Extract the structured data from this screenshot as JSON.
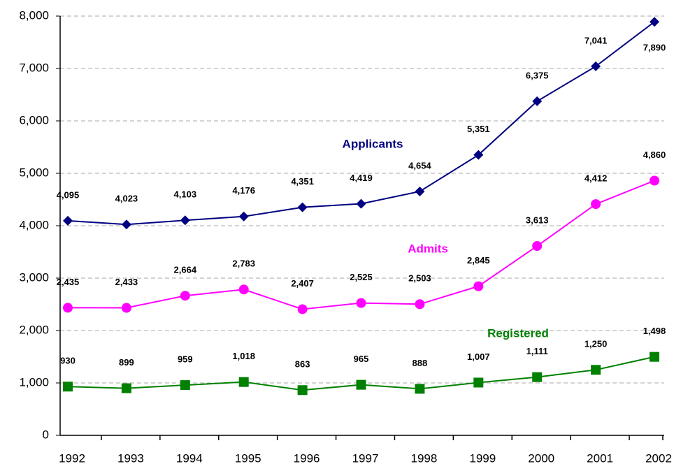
{
  "chart_data": {
    "type": "line",
    "categories": [
      "1992",
      "1993",
      "1994",
      "1995",
      "1996",
      "1997",
      "1998",
      "1999",
      "2000",
      "2001",
      "2002"
    ],
    "series": [
      {
        "name": "Applicants",
        "color": "#000080",
        "marker": "diamond",
        "values": [
          4095,
          4023,
          4103,
          4176,
          4351,
          4419,
          4654,
          5351,
          6375,
          7041,
          7890
        ],
        "value_labels": [
          "4,095",
          "4,023",
          "4,103",
          "4,176",
          "4,351",
          "4,419",
          "4,654",
          "5,351",
          "6,375",
          "7,041",
          "7,890"
        ]
      },
      {
        "name": "Admits",
        "color": "#ff00ff",
        "marker": "circle",
        "values": [
          2435,
          2433,
          2664,
          2783,
          2407,
          2525,
          2503,
          2845,
          3613,
          4412,
          4860
        ],
        "value_labels": [
          "2,435",
          "2,433",
          "2,664",
          "2,783",
          "2,407",
          "2,525",
          "2,503",
          "2,845",
          "3,613",
          "4,412",
          "4,860"
        ]
      },
      {
        "name": "Registered",
        "color": "#008000",
        "marker": "square",
        "values": [
          930,
          899,
          959,
          1018,
          863,
          965,
          888,
          1007,
          1111,
          1250,
          1498
        ],
        "value_labels": [
          "930",
          "899",
          "959",
          "1,018",
          "863",
          "965",
          "888",
          "1,007",
          "1,111",
          "1,250",
          "1,498"
        ]
      }
    ],
    "ylim": [
      0,
      8000
    ],
    "yticks": [
      0,
      {
        "value": 1000,
        "label": "1,000"
      },
      {
        "value": 2000,
        "label": "2,000"
      },
      {
        "value": 3000,
        "label": "3,000"
      },
      {
        "value": 4000,
        "label": "4,000"
      },
      {
        "value": 5000,
        "label": "5,000"
      },
      {
        "value": 6000,
        "label": "6,000"
      },
      {
        "value": 7000,
        "label": "7,000"
      },
      {
        "value": 8000,
        "label": "8,000"
      }
    ],
    "grid": true
  }
}
